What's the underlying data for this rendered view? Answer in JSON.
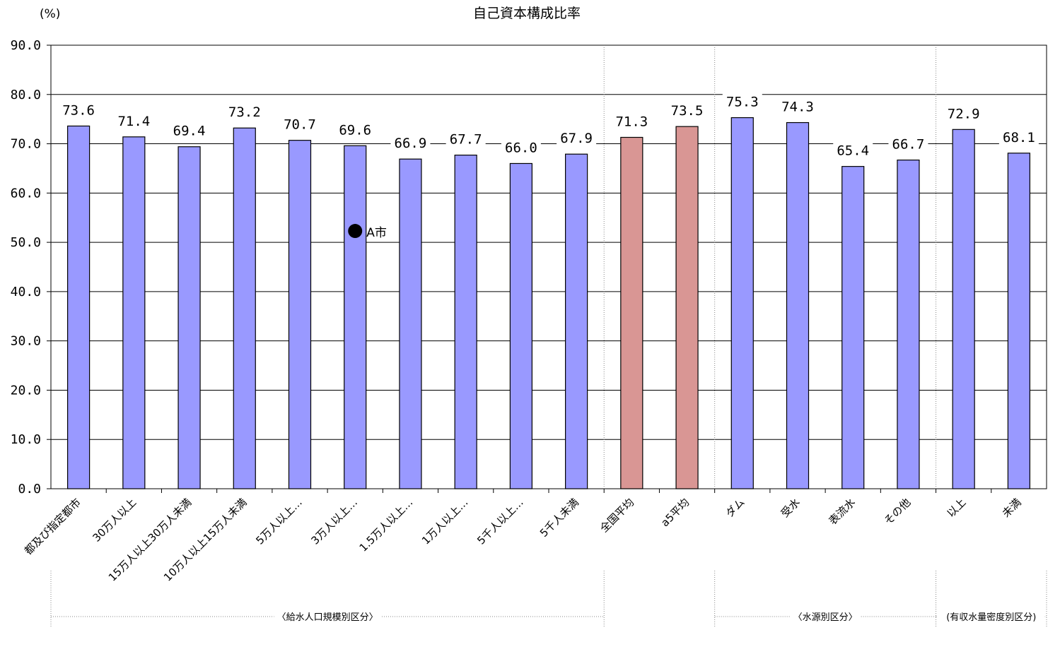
{
  "chart_data": {
    "type": "bar",
    "title": "自己資本構成比率",
    "ylabel": "(%)",
    "ylim": [
      0,
      90
    ],
    "yticks": [
      "0.0",
      "10.0",
      "20.0",
      "30.0",
      "40.0",
      "50.0",
      "60.0",
      "70.0",
      "80.0",
      "90.0"
    ],
    "grid": true,
    "categories": [
      "都及び指定都市",
      "30万人以上",
      "15万人以上30万人未満",
      "10万人以上15万人未満",
      "5万人以上…",
      "3万人以上…",
      "1.5万人以上…",
      "1万人以上…",
      "5千人以上…",
      "5千人未満",
      "全国平均",
      "a5平均",
      "ダム",
      "受水",
      "表流水",
      "その他",
      "以上",
      "未満"
    ],
    "values": [
      73.6,
      71.4,
      69.4,
      73.2,
      70.7,
      69.6,
      66.9,
      67.7,
      66.0,
      67.9,
      71.3,
      73.5,
      75.3,
      74.3,
      65.4,
      66.7,
      72.9,
      68.1
    ],
    "value_labels": [
      "73.6",
      "71.4",
      "69.4",
      "73.2",
      "70.7",
      "69.6",
      "66.9",
      "67.7",
      "66.0",
      "67.9",
      "71.3",
      "73.5",
      "75.3",
      "74.3",
      "65.4",
      "66.7",
      "72.9",
      "68.1"
    ],
    "bar_colors": [
      "#9999ff",
      "#9999ff",
      "#9999ff",
      "#9999ff",
      "#9999ff",
      "#9999ff",
      "#9999ff",
      "#9999ff",
      "#9999ff",
      "#9999ff",
      "#d99694",
      "#d99694",
      "#9999ff",
      "#9999ff",
      "#9999ff",
      "#9999ff",
      "#9999ff",
      "#9999ff"
    ],
    "marker": {
      "label": "A市",
      "category_index": 5,
      "value": 52.3,
      "color": "#000000"
    },
    "groups": [
      {
        "label": "〈給水人口規模別区分〉",
        "from": 0,
        "to": 9
      },
      {
        "label": "〈水源別区分〉",
        "from": 12,
        "to": 15
      },
      {
        "label": "(有収水量密度別区分)",
        "from": 16,
        "to": 17
      }
    ]
  }
}
